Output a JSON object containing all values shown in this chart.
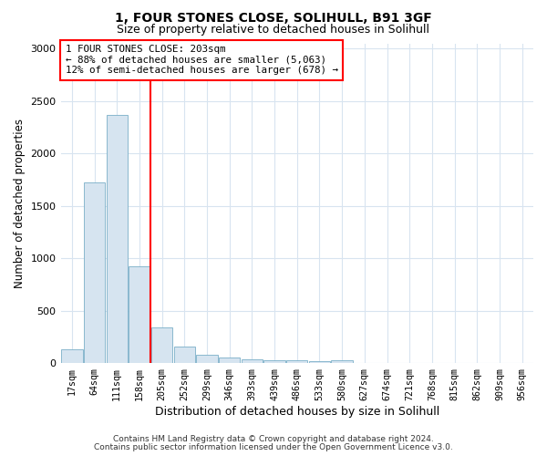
{
  "title_line1": "1, FOUR STONES CLOSE, SOLIHULL, B91 3GF",
  "title_line2": "Size of property relative to detached houses in Solihull",
  "xlabel": "Distribution of detached houses by size in Solihull",
  "ylabel": "Number of detached properties",
  "bar_color": "#d6e4f0",
  "bar_edge_color": "#7aafc8",
  "bin_labels": [
    "17sqm",
    "64sqm",
    "111sqm",
    "158sqm",
    "205sqm",
    "252sqm",
    "299sqm",
    "346sqm",
    "393sqm",
    "439sqm",
    "486sqm",
    "533sqm",
    "580sqm",
    "627sqm",
    "674sqm",
    "721sqm",
    "768sqm",
    "815sqm",
    "862sqm",
    "909sqm",
    "956sqm"
  ],
  "bar_values": [
    130,
    1720,
    2370,
    920,
    340,
    155,
    80,
    50,
    35,
    30,
    25,
    22,
    28,
    0,
    0,
    0,
    0,
    0,
    0,
    0,
    0
  ],
  "vline_bin_index": 4,
  "annotation_title": "1 FOUR STONES CLOSE: 203sqm",
  "annotation_line2": "← 88% of detached houses are smaller (5,063)",
  "annotation_line3": "12% of semi-detached houses are larger (678) →",
  "ylim": [
    0,
    3050
  ],
  "yticks": [
    0,
    500,
    1000,
    1500,
    2000,
    2500,
    3000
  ],
  "footer_line1": "Contains HM Land Registry data © Crown copyright and database right 2024.",
  "footer_line2": "Contains public sector information licensed under the Open Government Licence v3.0.",
  "background_color": "#ffffff",
  "plot_bg_color": "#ffffff",
  "grid_color": "#d8e4f0"
}
